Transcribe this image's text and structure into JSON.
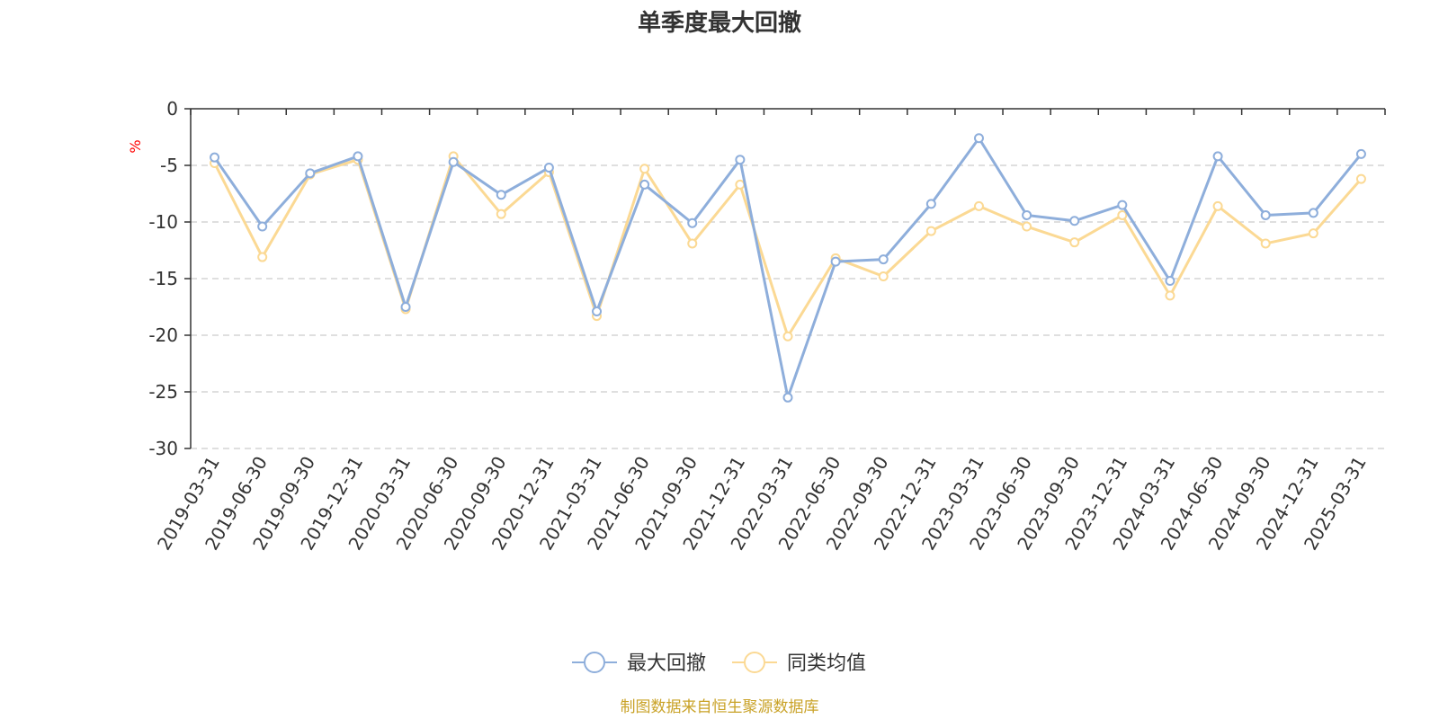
{
  "chart_data": {
    "type": "line",
    "title": "单季度最大回撤",
    "ylabel": "%",
    "ylim": [
      -30,
      0
    ],
    "yticks": [
      0,
      -5,
      -10,
      -15,
      -20,
      -25,
      -30
    ],
    "grid": true,
    "legend_position": "bottom",
    "categories": [
      "2019-03-31",
      "2019-06-30",
      "2019-09-30",
      "2019-12-31",
      "2020-03-31",
      "2020-06-30",
      "2020-09-30",
      "2020-12-31",
      "2021-03-31",
      "2021-06-30",
      "2021-09-30",
      "2021-12-31",
      "2022-03-31",
      "2022-06-30",
      "2022-09-30",
      "2022-12-31",
      "2023-03-31",
      "2023-06-30",
      "2023-09-30",
      "2023-12-31",
      "2024-03-31",
      "2024-06-30",
      "2024-09-30",
      "2024-12-31",
      "2025-03-31"
    ],
    "series": [
      {
        "name": "最大回撤",
        "color": "#8eaedb",
        "values": [
          -4.3,
          -10.4,
          -5.7,
          -4.2,
          -17.5,
          -4.7,
          -7.6,
          -5.2,
          -17.9,
          -6.7,
          -10.1,
          -4.5,
          -25.5,
          -13.5,
          -13.3,
          -8.4,
          -2.6,
          -9.4,
          -9.9,
          -8.5,
          -15.2,
          -4.2,
          -9.4,
          -9.2,
          -4.0
        ]
      },
      {
        "name": "同类均值",
        "color": "#fbd994",
        "values": [
          -4.8,
          -13.1,
          -5.8,
          -4.5,
          -17.7,
          -4.2,
          -9.3,
          -5.6,
          -18.3,
          -5.3,
          -11.9,
          -6.7,
          -20.1,
          -13.2,
          -14.8,
          -10.8,
          -8.6,
          -10.4,
          -11.8,
          -9.4,
          -16.5,
          -8.6,
          -11.9,
          -11.0,
          -6.2
        ]
      }
    ]
  },
  "source_text": "制图数据来自恒生聚源数据库",
  "colors": {
    "source": "#c9a227",
    "unit": "#ff0000",
    "axis": "#333333",
    "grid": "#cccccc"
  }
}
